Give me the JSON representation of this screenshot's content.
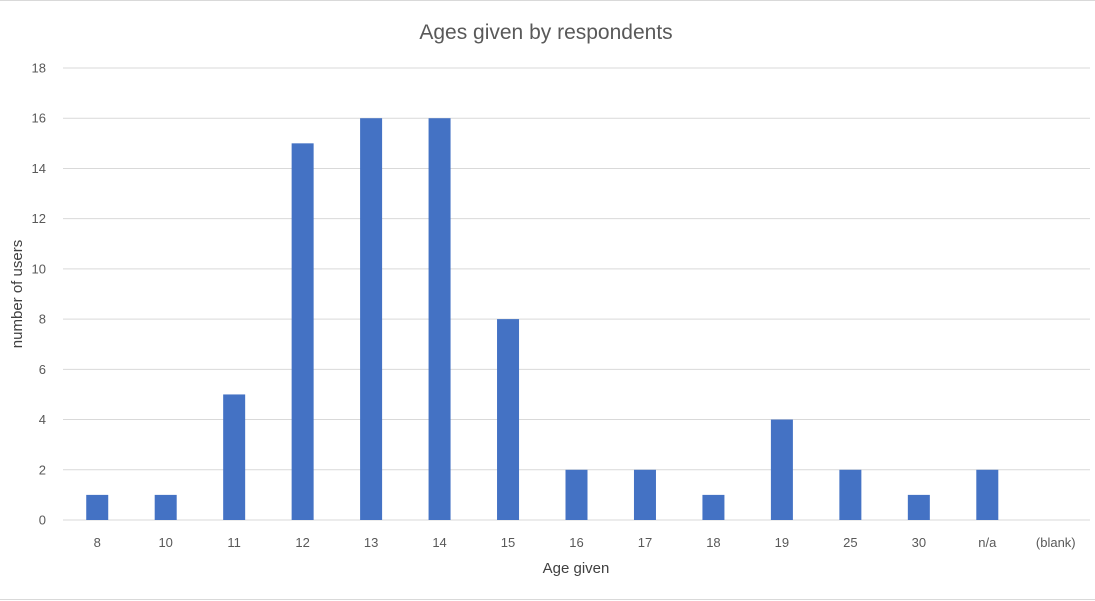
{
  "chart_data": {
    "type": "bar",
    "title": "Ages given by respondents",
    "xlabel": "Age given",
    "ylabel": "number of users",
    "categories": [
      "8",
      "10",
      "11",
      "12",
      "13",
      "14",
      "15",
      "16",
      "17",
      "18",
      "19",
      "25",
      "30",
      "n/a",
      "(blank)"
    ],
    "values": [
      1,
      1,
      5,
      15,
      16,
      16,
      8,
      2,
      2,
      1,
      4,
      2,
      1,
      2,
      0
    ],
    "ylim": [
      0,
      18
    ],
    "yticks": [
      0,
      2,
      4,
      6,
      8,
      10,
      12,
      14,
      16,
      18
    ],
    "grid": true,
    "legend": false,
    "colors": {
      "bar": "#4472C4",
      "grid": "#d9d9d9"
    }
  }
}
